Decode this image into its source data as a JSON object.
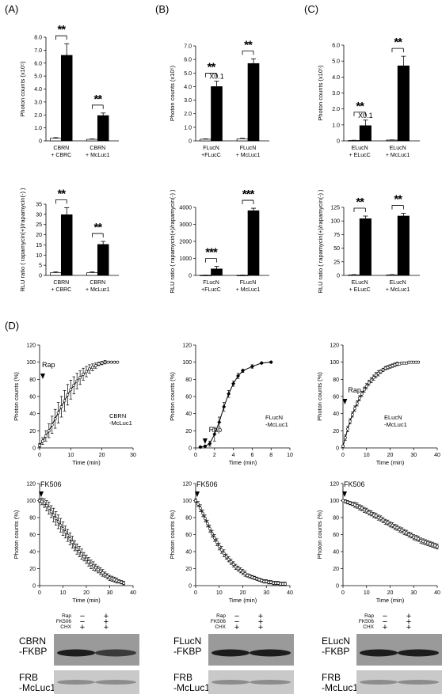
{
  "panels": {
    "A": "(A)",
    "B": "(B)",
    "C": "(C)",
    "D": "(D)"
  },
  "chart_data": [
    {
      "id": "A_top",
      "type": "bar",
      "ylabel": "Photon counts (x10⁵)",
      "ylim": [
        0,
        8
      ],
      "yticks": [
        "0",
        "1.0",
        "2.0",
        "3.0",
        "4.0",
        "5.0",
        "6.0",
        "7.0",
        "8.0"
      ],
      "categories": [
        "CBRN\n+ CBRC",
        "CBRN\n+ McLuc1"
      ],
      "series": [
        {
          "values": [
            0.2,
            0.12
          ],
          "err": [
            0.05,
            0.03
          ]
        },
        {
          "values": [
            6.6,
            1.95
          ],
          "err": [
            0.9,
            0.2
          ]
        }
      ],
      "sig": [
        "**",
        "**"
      ]
    },
    {
      "id": "A_bottom",
      "type": "bar",
      "ylabel": "RLU ratio ( rapamycin(+)/rapamycin(-) )",
      "ylim": [
        0,
        35
      ],
      "yticks": [
        "0",
        "5",
        "10",
        "15",
        "20",
        "25",
        "30",
        "35"
      ],
      "categories": [
        "CBRN\n+ CBRC",
        "CBRN\n+ McLuc1"
      ],
      "series": [
        {
          "values": [
            1.3,
            1.3
          ],
          "err": [
            0.4,
            0.4
          ]
        },
        {
          "values": [
            29.8,
            15.2
          ],
          "err": [
            3.5,
            1.5
          ]
        }
      ],
      "sig": [
        "**",
        "**"
      ]
    },
    {
      "id": "B_top",
      "type": "bar",
      "ylabel": "Photon counts (x10⁵)",
      "ylim": [
        0,
        7
      ],
      "yticks": [
        "0",
        "1.0",
        "2.0",
        "3.0",
        "4.0",
        "5.0",
        "6.0",
        "7.0"
      ],
      "categories": [
        "FLucN\n+FLucC",
        "FLucN\n+ McLuc1"
      ],
      "series": [
        {
          "values": [
            0.12,
            0.15
          ],
          "err": [
            0.03,
            0.04
          ]
        },
        {
          "values": [
            4.0,
            5.7
          ],
          "err": [
            0.4,
            0.35
          ]
        }
      ],
      "sig": [
        "**",
        "**"
      ],
      "annotations": [
        "X0.1"
      ]
    },
    {
      "id": "B_bottom",
      "type": "bar",
      "ylabel": "RLU ratio ( rapamycin(+)/rapamycin(-) )",
      "ylim": [
        0,
        4000
      ],
      "yticks": [
        "0",
        "1000",
        "2000",
        "3000",
        "4000"
      ],
      "categories": [
        "FLucN\n+FLucC",
        "FLucN\n+ McLuc1"
      ],
      "series": [
        {
          "values": [
            10,
            10
          ],
          "err": [
            5,
            5
          ]
        },
        {
          "values": [
            380,
            3800
          ],
          "err": [
            150,
            150
          ]
        }
      ],
      "sig": [
        "***",
        "***"
      ]
    },
    {
      "id": "C_top",
      "type": "bar",
      "ylabel": "Photon counts (x10⁵)",
      "ylim": [
        0,
        6
      ],
      "yticks": [
        "0",
        "1.0",
        "2.0",
        "3.0",
        "4.0",
        "5.0",
        "6.0"
      ],
      "categories": [
        "ELucN\n+ ELucC",
        "ELucN\n+ McLuc1"
      ],
      "series": [
        {
          "values": [
            0.03,
            0.05
          ],
          "err": [
            0.01,
            0.01
          ]
        },
        {
          "values": [
            0.95,
            4.7
          ],
          "err": [
            0.35,
            0.6
          ]
        }
      ],
      "sig": [
        "**",
        "**"
      ],
      "annotations": [
        "X0.1"
      ]
    },
    {
      "id": "C_bottom",
      "type": "bar",
      "ylabel": "RLU ratio ( rapamycin(+)/rapamycin(-) )",
      "ylim": [
        0,
        125
      ],
      "yticks": [
        "0",
        "25",
        "50",
        "75",
        "100",
        "125"
      ],
      "categories": [
        "ELucN\n+ ELucC",
        "ELucN\n+ McLuc1"
      ],
      "series": [
        {
          "values": [
            1,
            1
          ],
          "err": [
            0.5,
            0.5
          ]
        },
        {
          "values": [
            104,
            109
          ],
          "err": [
            5,
            5
          ]
        }
      ],
      "sig": [
        "**",
        "**"
      ]
    },
    {
      "id": "D_rap_CBRN",
      "type": "line",
      "xlabel": "Time (min)",
      "ylabel": "Photon counts (%)",
      "xlim": [
        0,
        30
      ],
      "ylim": [
        0,
        120
      ],
      "xticks": [
        "0",
        "10",
        "20",
        "30"
      ],
      "yticks": [
        "0",
        "20",
        "40",
        "60",
        "80",
        "100",
        "120"
      ],
      "label": "CBRN\n-McLuc1",
      "marker": "Rap",
      "x": [
        0,
        1,
        2,
        3,
        4,
        5,
        6,
        7,
        8,
        9,
        10,
        11,
        12,
        13,
        14,
        15,
        16,
        17,
        18,
        19,
        20,
        21,
        22,
        23,
        24,
        25
      ],
      "y": [
        3,
        8,
        14,
        20,
        27,
        34,
        41,
        48,
        55,
        62,
        68,
        73,
        78,
        82,
        86,
        89,
        92,
        94,
        96,
        98,
        99,
        100,
        100,
        100,
        100,
        100
      ],
      "err": [
        2,
        4,
        6,
        8,
        10,
        11,
        12,
        12,
        12,
        12,
        11,
        10,
        9,
        8,
        7,
        6,
        5,
        4,
        3,
        2,
        2,
        2,
        1,
        1,
        1,
        1
      ]
    },
    {
      "id": "D_rap_FLucN",
      "type": "line",
      "xlabel": "Time (min)",
      "ylabel": "Photon counts (%)",
      "xlim": [
        0,
        10
      ],
      "ylim": [
        0,
        120
      ],
      "xticks": [
        "0",
        "2",
        "4",
        "6",
        "8",
        "10"
      ],
      "yticks": [
        "0",
        "20",
        "40",
        "60",
        "80",
        "100",
        "120"
      ],
      "label": "FLucN\n-McLuc1",
      "marker": "Rap",
      "x": [
        0.5,
        1,
        1.5,
        2,
        2.5,
        3,
        3.5,
        4,
        4.5,
        5,
        6,
        7,
        8
      ],
      "y": [
        1,
        2,
        5,
        16,
        30,
        48,
        63,
        75,
        84,
        90,
        95,
        99,
        100
      ],
      "err": [
        1,
        1,
        3,
        8,
        6,
        5,
        4,
        3,
        3,
        2,
        2,
        1,
        1
      ]
    },
    {
      "id": "D_rap_ELucN",
      "type": "line",
      "xlabel": "Time (min)",
      "ylabel": "Photon counts (%)",
      "xlim": [
        0,
        40
      ],
      "ylim": [
        0,
        120
      ],
      "xticks": [
        "0",
        "10",
        "20",
        "30",
        "40"
      ],
      "yticks": [
        "0",
        "20",
        "40",
        "60",
        "80",
        "100",
        "120"
      ],
      "label": "ELucN\n-McLuc1",
      "marker": "Rap",
      "x": [
        0,
        1,
        2,
        3,
        4,
        5,
        6,
        7,
        8,
        9,
        10,
        11,
        12,
        13,
        14,
        15,
        16,
        17,
        18,
        19,
        20,
        21,
        22,
        23,
        24,
        25,
        26,
        27,
        28,
        29,
        30,
        31,
        32
      ],
      "y": [
        2,
        12,
        22,
        31,
        39,
        46,
        52,
        58,
        63,
        68,
        72,
        76,
        79,
        82,
        85,
        87,
        89,
        91,
        93,
        94,
        95,
        96,
        97,
        98,
        98,
        99,
        99,
        99,
        100,
        100,
        100,
        100,
        100
      ],
      "err": [
        1,
        3,
        3,
        3,
        3,
        3,
        3,
        3,
        3,
        3,
        3,
        3,
        3,
        3,
        3,
        3,
        2,
        2,
        2,
        2,
        2,
        2,
        2,
        2,
        1,
        1,
        1,
        1,
        1,
        1,
        1,
        1,
        1
      ]
    },
    {
      "id": "D_fk_CBRN",
      "type": "line",
      "xlabel": "Time (min)",
      "ylabel": "Photon counts (%)",
      "xlim": [
        0,
        40
      ],
      "ylim": [
        0,
        120
      ],
      "xticks": [
        "0",
        "10",
        "20",
        "30",
        "40"
      ],
      "yticks": [
        "0",
        "20",
        "40",
        "60",
        "80",
        "100",
        "120"
      ],
      "marker": "FK506",
      "x": [
        0,
        1,
        2,
        3,
        4,
        5,
        6,
        7,
        8,
        9,
        10,
        11,
        12,
        13,
        14,
        15,
        16,
        17,
        18,
        19,
        20,
        21,
        22,
        23,
        24,
        25,
        26,
        27,
        28,
        29,
        30,
        31,
        32,
        33,
        34,
        35,
        36
      ],
      "y": [
        100,
        99,
        97,
        94,
        91,
        87,
        83,
        79,
        75,
        71,
        67,
        63,
        59,
        55,
        51,
        47,
        43,
        40,
        37,
        34,
        31,
        28,
        25,
        23,
        21,
        19,
        17,
        15,
        13,
        11,
        9,
        8,
        7,
        6,
        5,
        4,
        3
      ],
      "err": [
        2,
        4,
        5,
        6,
        7,
        7,
        8,
        8,
        8,
        8,
        8,
        7,
        7,
        7,
        7,
        6,
        6,
        6,
        6,
        5,
        5,
        5,
        5,
        5,
        4,
        4,
        4,
        4,
        3,
        3,
        3,
        3,
        3,
        3,
        2,
        2,
        2
      ]
    },
    {
      "id": "D_fk_FLucN",
      "type": "line",
      "xlabel": "Time (min)",
      "ylabel": "Photon counts (%)",
      "xlim": [
        0,
        40
      ],
      "ylim": [
        0,
        120
      ],
      "xticks": [
        "0",
        "10",
        "20",
        "30",
        "40"
      ],
      "yticks": [
        "0",
        "20",
        "40",
        "60",
        "80",
        "100",
        "120"
      ],
      "marker": "FK506",
      "x": [
        0,
        1,
        2,
        3,
        4,
        5,
        6,
        7,
        8,
        9,
        10,
        11,
        12,
        13,
        14,
        15,
        16,
        17,
        18,
        19,
        20,
        21,
        22,
        23,
        24,
        25,
        26,
        27,
        28,
        29,
        30,
        31,
        32,
        33,
        34,
        35,
        36,
        37,
        38
      ],
      "y": [
        100,
        96,
        91,
        85,
        79,
        73,
        67,
        61,
        56,
        51,
        46,
        42,
        38,
        34,
        31,
        28,
        25,
        22,
        20,
        18,
        16,
        14,
        12,
        11,
        10,
        9,
        8,
        7,
        6,
        5,
        5,
        4,
        4,
        3,
        3,
        3,
        2,
        2,
        2
      ],
      "err": [
        2,
        3,
        4,
        4,
        4,
        4,
        4,
        4,
        4,
        4,
        4,
        4,
        4,
        3,
        3,
        3,
        3,
        3,
        3,
        3,
        3,
        3,
        2,
        2,
        2,
        2,
        2,
        2,
        2,
        2,
        2,
        2,
        2,
        2,
        2,
        2,
        2,
        2,
        2
      ]
    },
    {
      "id": "D_fk_ELucN",
      "type": "line",
      "xlabel": "Time (min)",
      "ylabel": "Photon counts (%)",
      "xlim": [
        0,
        40
      ],
      "ylim": [
        0,
        120
      ],
      "xticks": [
        "0",
        "10",
        "20",
        "30",
        "40"
      ],
      "yticks": [
        "0",
        "20",
        "40",
        "60",
        "80",
        "100",
        "120"
      ],
      "marker": "FK506",
      "x": [
        0,
        1,
        2,
        3,
        4,
        5,
        6,
        7,
        8,
        9,
        10,
        11,
        12,
        13,
        14,
        15,
        16,
        17,
        18,
        19,
        20,
        21,
        22,
        23,
        24,
        25,
        26,
        27,
        28,
        29,
        30,
        31,
        32,
        33,
        34,
        35,
        36,
        37,
        38,
        39,
        40
      ],
      "y": [
        100,
        99,
        98,
        97,
        96,
        95,
        94,
        92,
        91,
        89,
        88,
        86,
        85,
        83,
        82,
        80,
        79,
        77,
        75,
        74,
        72,
        71,
        69,
        68,
        66,
        65,
        63,
        62,
        60,
        59,
        57,
        56,
        55,
        53,
        52,
        51,
        50,
        49,
        48,
        47,
        46
      ],
      "err": [
        1,
        2,
        2,
        2,
        2,
        3,
        3,
        3,
        3,
        3,
        3,
        3,
        3,
        3,
        3,
        3,
        3,
        3,
        3,
        3,
        3,
        3,
        3,
        3,
        3,
        3,
        3,
        3,
        3,
        3,
        3,
        3,
        3,
        3,
        3,
        3,
        3,
        3,
        3,
        3,
        3
      ]
    }
  ],
  "blots": [
    {
      "top_label": "CBRN\n-FKBP",
      "bottom_label": "FRB\n-McLuc1",
      "hdr": [
        "Rap",
        "FK506",
        "CHX"
      ],
      "lane1": [
        "−",
        "−",
        "+"
      ],
      "lane2": [
        "+",
        "+",
        "+"
      ]
    },
    {
      "top_label": "FLucN\n-FKBP",
      "bottom_label": "FRB\n-McLuc1",
      "hdr": [
        "Rap",
        "FK506",
        "CHX"
      ],
      "lane1": [
        "−",
        "−",
        "+"
      ],
      "lane2": [
        "+",
        "+",
        "+"
      ]
    },
    {
      "top_label": "ELucN\n-FKBP",
      "bottom_label": "FRB\n-McLuc1",
      "hdr": [
        "Rap",
        "FK506",
        "CHX"
      ],
      "lane1": [
        "−",
        "−",
        "+"
      ],
      "lane2": [
        "+",
        "+",
        "+"
      ]
    }
  ]
}
